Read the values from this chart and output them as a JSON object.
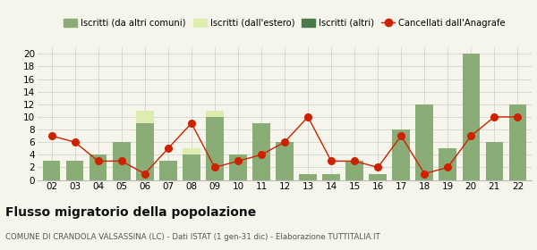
{
  "years": [
    "02",
    "03",
    "04",
    "05",
    "06",
    "07",
    "08",
    "09",
    "10",
    "11",
    "12",
    "13",
    "14",
    "15",
    "16",
    "17",
    "18",
    "19",
    "20",
    "21",
    "22"
  ],
  "iscritti_da_altri": [
    3,
    3,
    4,
    6,
    9,
    3,
    4,
    10,
    4,
    9,
    6,
    1,
    1,
    3,
    1,
    8,
    12,
    5,
    20,
    6,
    12
  ],
  "iscritti_estero": [
    0,
    0,
    0,
    0,
    2,
    0,
    1,
    1,
    0,
    0,
    0,
    0,
    0,
    0,
    0,
    0,
    0,
    0,
    0,
    0,
    0
  ],
  "iscritti_altri": [
    0,
    0,
    0,
    0,
    0,
    0,
    0,
    0,
    0,
    0,
    0,
    0,
    0,
    0,
    0,
    0,
    0,
    0,
    0,
    0,
    0
  ],
  "cancellati": [
    7,
    6,
    3,
    3,
    1,
    5,
    9,
    2,
    3,
    4,
    6,
    10,
    3,
    3,
    2,
    7,
    1,
    2,
    7,
    10,
    10
  ],
  "color_da_altri": "#8aad78",
  "color_estero": "#ddedb0",
  "color_altri": "#4a7a4a",
  "color_cancellati": "#cc2200",
  "ylim": [
    0,
    21
  ],
  "yticks": [
    0,
    2,
    4,
    6,
    8,
    10,
    12,
    14,
    16,
    18,
    20
  ],
  "title": "Flusso migratorio della popolazione",
  "subtitle": "COMUNE DI CRANDOLA VALSASSINA (LC) - Dati ISTAT (1 gen-31 dic) - Elaborazione TUTTITALIA.IT",
  "legend_labels": [
    "Iscritti (da altri comuni)",
    "Iscritti (dall'estero)",
    "Iscritti (altri)",
    "Cancellati dall'Anagrafe"
  ],
  "bg_color": "#f5f5eb",
  "grid_color": "#cccccc"
}
